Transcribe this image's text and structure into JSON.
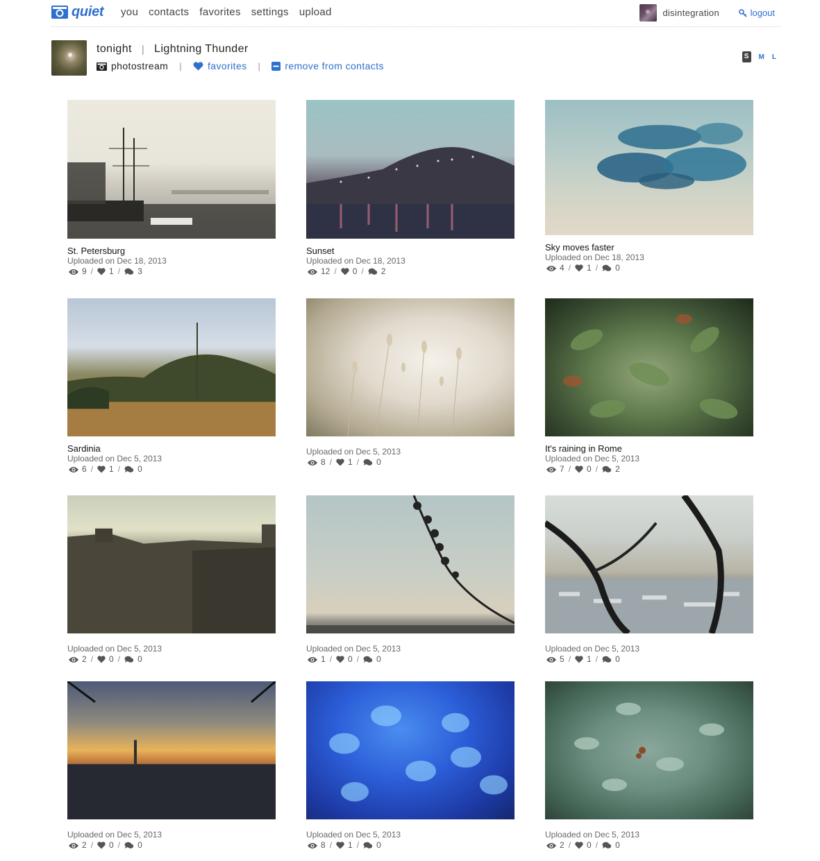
{
  "app": {
    "logo_text": "quiet",
    "nav": [
      "you",
      "contacts",
      "favorites",
      "settings",
      "upload"
    ],
    "user_name": "disintegration",
    "logout_label": "logout"
  },
  "profile": {
    "name": "tonight",
    "subtitle": "Lightning Thunder",
    "photostream_label": "photostream",
    "favorites_label": "favorites",
    "remove_contact_label": "remove from contacts",
    "sizes": [
      "S",
      "M",
      "L"
    ],
    "active_size": "S"
  },
  "photos": [
    {
      "title": "St. Petersburg",
      "date": "Uploaded on Dec 18, 2013",
      "views": "9",
      "favs": "1",
      "comments": "3"
    },
    {
      "title": "Sunset",
      "date": "Uploaded on Dec 18, 2013",
      "views": "12",
      "favs": "0",
      "comments": "2"
    },
    {
      "title": "Sky moves faster",
      "date": "Uploaded on Dec 18, 2013",
      "views": "4",
      "favs": "1",
      "comments": "0"
    },
    {
      "title": "Sardinia",
      "date": "Uploaded on Dec 5, 2013",
      "views": "6",
      "favs": "1",
      "comments": "0"
    },
    {
      "title": "",
      "date": "Uploaded on Dec 5, 2013",
      "views": "8",
      "favs": "1",
      "comments": "0"
    },
    {
      "title": "It's raining in Rome",
      "date": "Uploaded on Dec 5, 2013",
      "views": "7",
      "favs": "0",
      "comments": "2"
    },
    {
      "title": "",
      "date": "Uploaded on Dec 5, 2013",
      "views": "2",
      "favs": "0",
      "comments": "0"
    },
    {
      "title": "",
      "date": "Uploaded on Dec 5, 2013",
      "views": "1",
      "favs": "0",
      "comments": "0"
    },
    {
      "title": "",
      "date": "Uploaded on Dec 5, 2013",
      "views": "5",
      "favs": "1",
      "comments": "0"
    },
    {
      "title": "",
      "date": "Uploaded on Dec 5, 2013",
      "views": "2",
      "favs": "0",
      "comments": "0"
    },
    {
      "title": "",
      "date": "Uploaded on Dec 5, 2013",
      "views": "8",
      "favs": "1",
      "comments": "0"
    },
    {
      "title": "",
      "date": "Uploaded on Dec 5, 2013",
      "views": "2",
      "favs": "0",
      "comments": "0"
    }
  ],
  "icons": {
    "logo": "camera-icon",
    "logout": "key-icon",
    "photostream": "camera-icon",
    "favorites": "heart-icon",
    "remove": "minus-square-icon",
    "views": "eye-icon",
    "favs": "heart-icon",
    "comments": "comments-icon"
  },
  "colors": {
    "accent": "#2f6fce",
    "text": "#222222",
    "muted": "#666666"
  }
}
